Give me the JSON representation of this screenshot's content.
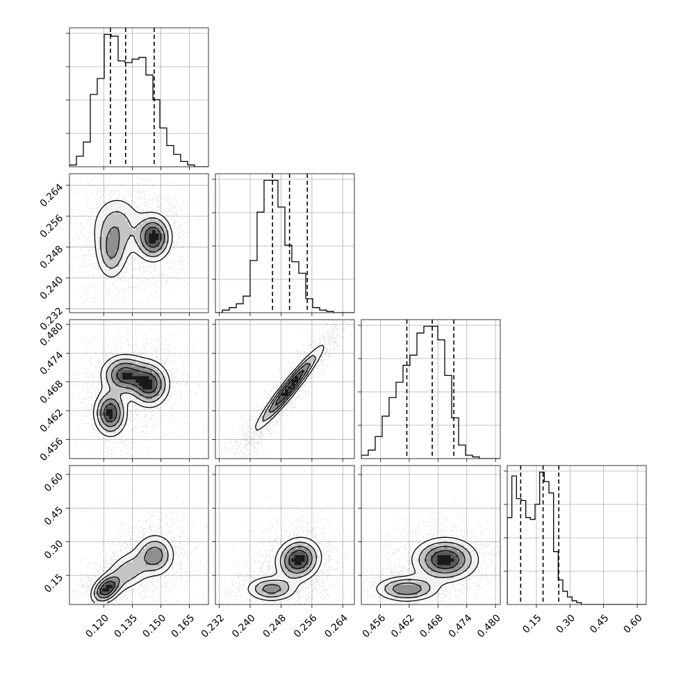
{
  "chart_data": {
    "type": "corner",
    "parameters": [
      {
        "range": [
          0.102,
          0.175
        ],
        "ticks": [
          0.12,
          0.135,
          0.15,
          0.165
        ],
        "tick_labels": [
          "0.120",
          "0.135",
          "0.150",
          "0.165"
        ],
        "quantiles": [
          0.1235,
          0.1315,
          0.1465
        ],
        "median": 0.1315
      },
      {
        "range": [
          0.231,
          0.267
        ],
        "ticks": [
          0.232,
          0.24,
          0.248,
          0.256,
          0.264
        ],
        "tick_labels": [
          "0.232",
          "0.240",
          "0.248",
          "0.256",
          "0.264"
        ],
        "quantiles": [
          0.2458,
          0.2502,
          0.2548
        ],
        "median": 0.2502
      },
      {
        "range": [
          0.452,
          0.481
        ],
        "ticks": [
          0.456,
          0.462,
          0.468,
          0.474,
          0.48
        ],
        "tick_labels": [
          "0.456",
          "0.462",
          "0.468",
          "0.474",
          "0.480"
        ],
        "quantiles": [
          0.4615,
          0.4668,
          0.4713
        ],
        "median": 0.4668
      },
      {
        "range": [
          0.02,
          0.64
        ],
        "ticks": [
          0.15,
          0.3,
          0.45,
          0.6
        ],
        "tick_labels": [
          "0.15",
          "0.30",
          "0.45",
          "0.60"
        ],
        "quantiles": [
          0.08,
          0.18,
          0.25
        ],
        "median": 0.18
      }
    ],
    "histograms": [
      {
        "bins": 20,
        "counts": [
          1,
          6,
          14,
          41,
          50,
          75,
          74,
          60,
          59,
          61,
          62,
          52,
          38,
          22,
          12,
          7,
          3,
          1,
          0,
          0
        ]
      },
      {
        "bins": 20,
        "counts": [
          0,
          2,
          4,
          7,
          13,
          41,
          79,
          104,
          104,
          83,
          53,
          40,
          31,
          11,
          4,
          2,
          1,
          0,
          0,
          0
        ]
      },
      {
        "bins": 20,
        "counts": [
          2,
          5,
          13,
          25,
          36,
          45,
          55,
          61,
          74,
          78,
          78,
          70,
          49,
          24,
          8,
          2,
          1,
          0,
          0,
          0
        ]
      },
      {
        "bins": 30,
        "counts": [
          46,
          68,
          56,
          55,
          46,
          45,
          53,
          70,
          65,
          59,
          28,
          13,
          7,
          4,
          2,
          1,
          0,
          0,
          0,
          0,
          0,
          0,
          0,
          0,
          0,
          0,
          0,
          0,
          0,
          0
        ]
      }
    ],
    "joint_modes": [
      {
        "row": 1,
        "col": 0,
        "modes": [
          {
            "mx": 0.127,
            "my": 0.2535,
            "sx": 0.0075,
            "sy": 0.0045,
            "rho": 0.0,
            "w": 0.36
          },
          {
            "mx": 0.124,
            "my": 0.2465,
            "sx": 0.0045,
            "sy": 0.004,
            "rho": 0.0,
            "w": 0.22
          },
          {
            "mx": 0.146,
            "my": 0.2505,
            "sx": 0.005,
            "sy": 0.0032,
            "rho": 0.0,
            "w": 0.42
          }
        ]
      },
      {
        "row": 2,
        "col": 0,
        "modes": [
          {
            "mx": 0.1235,
            "my": 0.4615,
            "sx": 0.0045,
            "sy": 0.0025,
            "rho": 0.0,
            "w": 0.3
          },
          {
            "mx": 0.131,
            "my": 0.4695,
            "sx": 0.0065,
            "sy": 0.0022,
            "rho": 0.0,
            "w": 0.35
          },
          {
            "mx": 0.144,
            "my": 0.4675,
            "sx": 0.0055,
            "sy": 0.0025,
            "rho": 0.0,
            "w": 0.35
          }
        ]
      },
      {
        "row": 2,
        "col": 1,
        "modes": [
          {
            "mx": 0.2502,
            "my": 0.4668,
            "sx": 0.0045,
            "sy": 0.0045,
            "rho": 0.96,
            "w": 1.0
          }
        ]
      },
      {
        "row": 3,
        "col": 0,
        "modes": [
          {
            "mx": 0.1215,
            "my": 0.09,
            "sx": 0.0042,
            "sy": 0.035,
            "rho": 0.4,
            "w": 0.3
          },
          {
            "mx": 0.133,
            "my": 0.17,
            "sx": 0.0065,
            "sy": 0.05,
            "rho": 0.3,
            "w": 0.3
          },
          {
            "mx": 0.147,
            "my": 0.24,
            "sx": 0.0055,
            "sy": 0.05,
            "rho": 0.0,
            "w": 0.4
          }
        ]
      },
      {
        "row": 3,
        "col": 1,
        "modes": [
          {
            "mx": 0.2455,
            "my": 0.09,
            "sx": 0.0035,
            "sy": 0.03,
            "rho": 0.0,
            "w": 0.3
          },
          {
            "mx": 0.2525,
            "my": 0.22,
            "sx": 0.003,
            "sy": 0.05,
            "rho": 0.1,
            "w": 0.7
          }
        ]
      },
      {
        "row": 3,
        "col": 2,
        "modes": [
          {
            "mx": 0.4615,
            "my": 0.09,
            "sx": 0.0035,
            "sy": 0.03,
            "rho": 0.0,
            "w": 0.3
          },
          {
            "mx": 0.4695,
            "my": 0.22,
            "sx": 0.0035,
            "sy": 0.05,
            "rho": 0.0,
            "w": 0.7
          }
        ]
      }
    ],
    "grid": true
  }
}
